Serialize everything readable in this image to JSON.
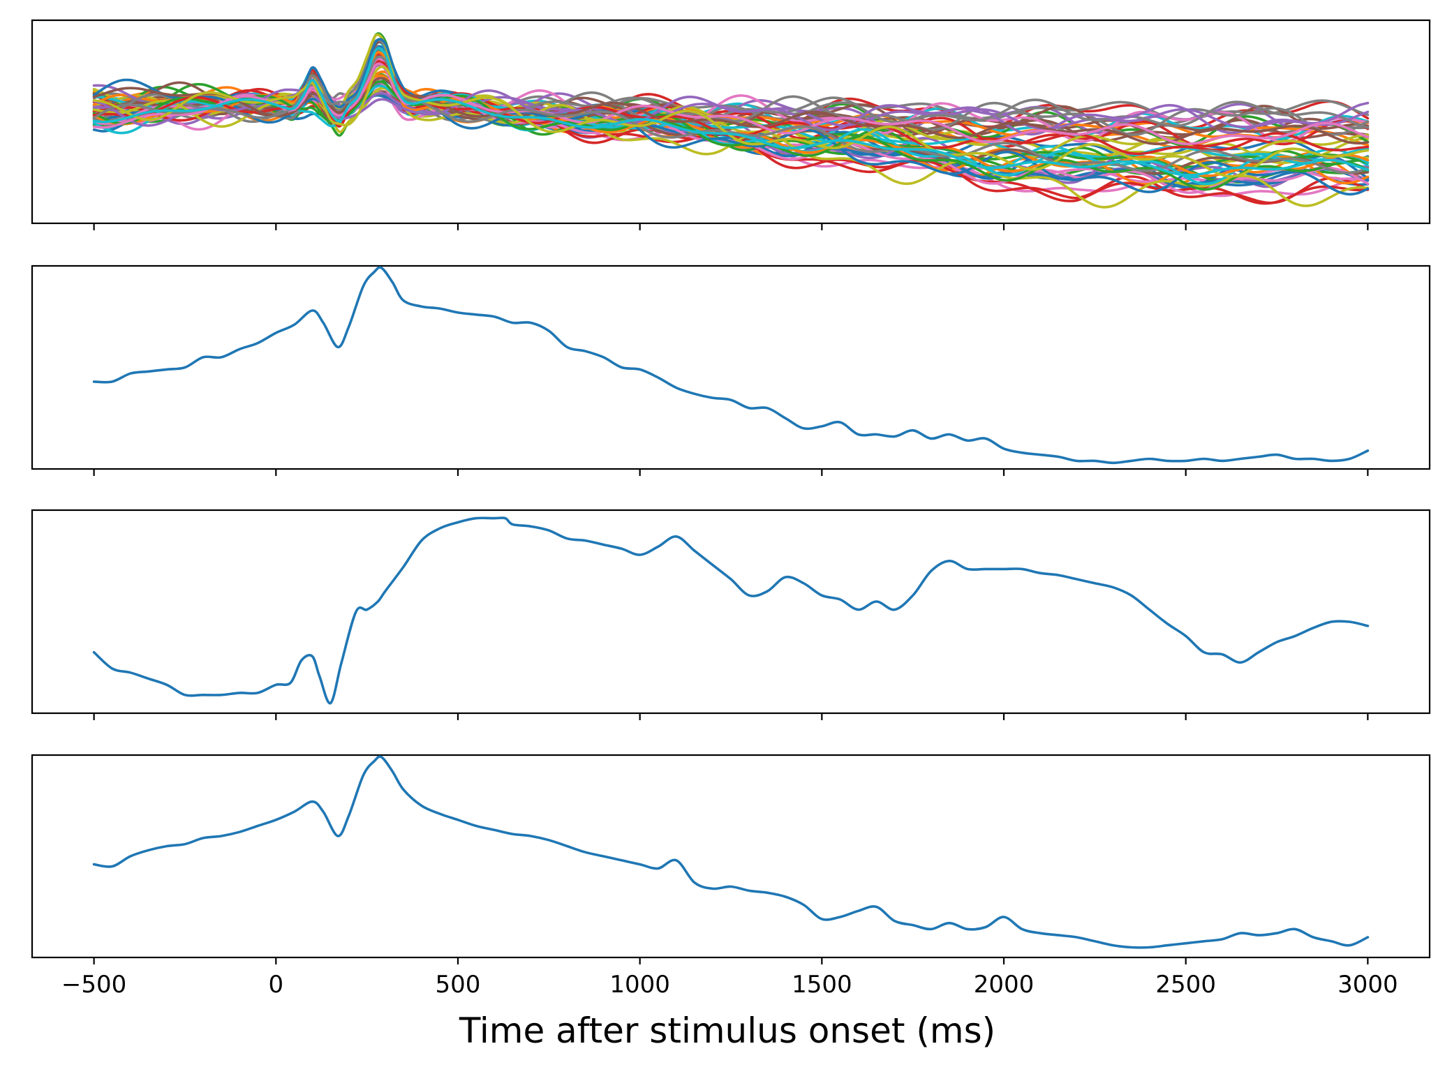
{
  "chart_data": [
    {
      "type": "line",
      "panel": "all-channels",
      "xlim": [
        -670,
        3170
      ],
      "x_ticks": [
        -500,
        0,
        500,
        1000,
        1500,
        2000,
        2500,
        3000
      ],
      "x_tick_labels_shown": false,
      "y_ticks_shown": false,
      "grid": false,
      "series_count": 50,
      "colors": [
        "#1f77b4",
        "#ff7f0e",
        "#2ca02c",
        "#d62728",
        "#9467bd",
        "#8c564b",
        "#e377c2",
        "#7f7f7f",
        "#bcbd22",
        "#17becf"
      ],
      "xlabel": "",
      "ylabel": "",
      "title": ""
    },
    {
      "type": "line",
      "panel": "component-1",
      "xlim": [
        -670,
        3170
      ],
      "ylim": [
        0,
        1
      ],
      "x_ticks": [
        -500,
        0,
        500,
        1000,
        1500,
        2000,
        2500,
        3000
      ],
      "x_tick_labels_shown": false,
      "y_ticks_shown": false,
      "grid": false,
      "color": "#1f77b4",
      "series": [
        {
          "x": [
            -500,
            -450,
            -400,
            -350,
            -300,
            -250,
            -200,
            -150,
            -100,
            -50,
            0,
            50,
            100,
            130,
            170,
            200,
            240,
            270,
            290,
            320,
            350,
            400,
            450,
            500,
            550,
            600,
            650,
            700,
            750,
            800,
            850,
            900,
            950,
            1000,
            1050,
            1100,
            1150,
            1200,
            1250,
            1300,
            1350,
            1400,
            1450,
            1500,
            1550,
            1600,
            1650,
            1700,
            1750,
            1800,
            1850,
            1900,
            1950,
            2000,
            2050,
            2100,
            2150,
            2200,
            2250,
            2300,
            2350,
            2400,
            2450,
            2500,
            2550,
            2600,
            2650,
            2700,
            2750,
            2800,
            2850,
            2900,
            2950,
            3000
          ],
          "y": [
            0.43,
            0.43,
            0.47,
            0.48,
            0.49,
            0.5,
            0.55,
            0.55,
            0.59,
            0.62,
            0.67,
            0.71,
            0.78,
            0.72,
            0.6,
            0.7,
            0.9,
            0.97,
            0.99,
            0.92,
            0.83,
            0.8,
            0.79,
            0.77,
            0.76,
            0.75,
            0.72,
            0.72,
            0.68,
            0.6,
            0.58,
            0.55,
            0.5,
            0.49,
            0.45,
            0.4,
            0.37,
            0.35,
            0.34,
            0.3,
            0.3,
            0.25,
            0.2,
            0.21,
            0.23,
            0.17,
            0.17,
            0.16,
            0.19,
            0.15,
            0.17,
            0.14,
            0.15,
            0.1,
            0.08,
            0.07,
            0.06,
            0.04,
            0.04,
            0.03,
            0.04,
            0.05,
            0.04,
            0.04,
            0.05,
            0.04,
            0.05,
            0.06,
            0.07,
            0.05,
            0.05,
            0.04,
            0.05,
            0.09
          ]
        }
      ],
      "xlabel": "",
      "ylabel": "",
      "title": ""
    },
    {
      "type": "line",
      "panel": "component-2",
      "xlim": [
        -670,
        3170
      ],
      "ylim": [
        0,
        1
      ],
      "x_ticks": [
        -500,
        0,
        500,
        1000,
        1500,
        2000,
        2500,
        3000
      ],
      "x_tick_labels_shown": false,
      "y_ticks_shown": false,
      "grid": false,
      "color": "#1f77b4",
      "series": [
        {
          "x": [
            -500,
            -450,
            -400,
            -350,
            -300,
            -250,
            -200,
            -150,
            -100,
            -50,
            0,
            40,
            70,
            100,
            120,
            150,
            180,
            220,
            250,
            280,
            300,
            350,
            400,
            450,
            500,
            550,
            600,
            630,
            650,
            700,
            750,
            800,
            850,
            900,
            950,
            1000,
            1050,
            1100,
            1150,
            1200,
            1250,
            1300,
            1350,
            1400,
            1450,
            1500,
            1550,
            1600,
            1650,
            1700,
            1750,
            1800,
            1850,
            1900,
            1950,
            2000,
            2050,
            2100,
            2150,
            2200,
            2250,
            2300,
            2350,
            2400,
            2450,
            2500,
            2550,
            2600,
            2650,
            2700,
            2750,
            2800,
            2850,
            2900,
            2950,
            3000
          ],
          "y": [
            0.3,
            0.22,
            0.2,
            0.17,
            0.14,
            0.09,
            0.09,
            0.09,
            0.1,
            0.1,
            0.14,
            0.15,
            0.26,
            0.28,
            0.18,
            0.05,
            0.25,
            0.5,
            0.51,
            0.55,
            0.6,
            0.72,
            0.85,
            0.91,
            0.94,
            0.96,
            0.96,
            0.96,
            0.93,
            0.92,
            0.9,
            0.86,
            0.85,
            0.83,
            0.81,
            0.78,
            0.82,
            0.87,
            0.8,
            0.73,
            0.66,
            0.58,
            0.6,
            0.67,
            0.64,
            0.58,
            0.56,
            0.51,
            0.55,
            0.51,
            0.58,
            0.7,
            0.75,
            0.71,
            0.71,
            0.71,
            0.71,
            0.69,
            0.68,
            0.66,
            0.64,
            0.62,
            0.58,
            0.51,
            0.44,
            0.38,
            0.3,
            0.29,
            0.25,
            0.3,
            0.35,
            0.38,
            0.42,
            0.45,
            0.45,
            0.43
          ]
        }
      ],
      "xlabel": "",
      "ylabel": "",
      "title": ""
    },
    {
      "type": "line",
      "panel": "component-3",
      "xlim": [
        -670,
        3170
      ],
      "ylim": [
        0,
        1
      ],
      "x_ticks": [
        -500,
        0,
        500,
        1000,
        1500,
        2000,
        2500,
        3000
      ],
      "x_tick_labels": [
        "−500",
        "0",
        "500",
        "1000",
        "1500",
        "2000",
        "2500",
        "3000"
      ],
      "y_ticks_shown": false,
      "grid": false,
      "color": "#1f77b4",
      "series": [
        {
          "x": [
            -500,
            -450,
            -400,
            -350,
            -300,
            -250,
            -200,
            -150,
            -100,
            -50,
            0,
            50,
            100,
            130,
            170,
            200,
            240,
            270,
            290,
            320,
            350,
            400,
            450,
            500,
            550,
            600,
            650,
            700,
            750,
            800,
            850,
            900,
            950,
            1000,
            1050,
            1100,
            1150,
            1200,
            1250,
            1300,
            1350,
            1400,
            1450,
            1500,
            1550,
            1600,
            1650,
            1700,
            1750,
            1800,
            1850,
            1900,
            1950,
            2000,
            2050,
            2100,
            2150,
            2200,
            2250,
            2300,
            2350,
            2400,
            2450,
            2500,
            2550,
            2600,
            2650,
            2700,
            2750,
            2800,
            2850,
            2900,
            2950,
            3000
          ],
          "y": [
            0.46,
            0.45,
            0.5,
            0.53,
            0.55,
            0.56,
            0.59,
            0.6,
            0.62,
            0.65,
            0.68,
            0.72,
            0.77,
            0.72,
            0.6,
            0.7,
            0.9,
            0.97,
            0.99,
            0.92,
            0.83,
            0.75,
            0.71,
            0.68,
            0.65,
            0.63,
            0.61,
            0.6,
            0.58,
            0.55,
            0.52,
            0.5,
            0.48,
            0.46,
            0.44,
            0.48,
            0.37,
            0.34,
            0.35,
            0.33,
            0.32,
            0.3,
            0.26,
            0.19,
            0.2,
            0.23,
            0.25,
            0.18,
            0.16,
            0.14,
            0.17,
            0.14,
            0.15,
            0.2,
            0.14,
            0.12,
            0.11,
            0.1,
            0.08,
            0.06,
            0.05,
            0.05,
            0.06,
            0.07,
            0.08,
            0.09,
            0.12,
            0.11,
            0.12,
            0.14,
            0.1,
            0.08,
            0.06,
            0.1
          ]
        }
      ],
      "xlabel": "Time after stimulus onset (ms)",
      "ylabel": "",
      "title": ""
    }
  ]
}
